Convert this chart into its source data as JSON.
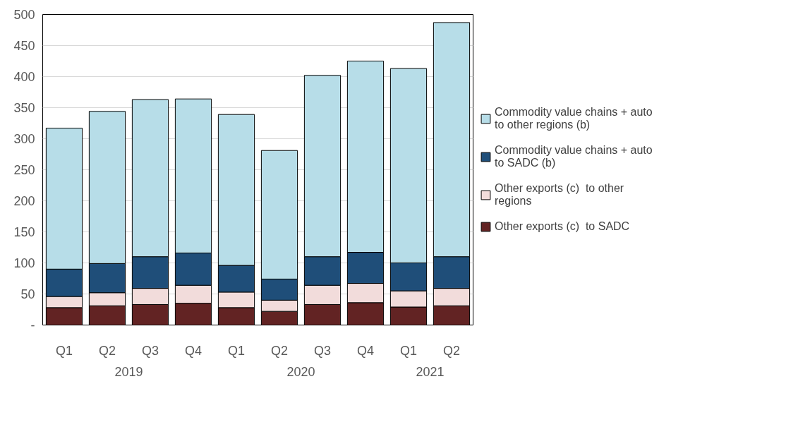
{
  "chart_data": {
    "type": "bar",
    "stacked": true,
    "categories": [
      "Q1",
      "Q2",
      "Q3",
      "Q4",
      "Q1",
      "Q2",
      "Q3",
      "Q4",
      "Q1",
      "Q2"
    ],
    "annotations": [
      "2019",
      "2020",
      "2021"
    ],
    "series": [
      {
        "name": "Other exports (c)  to SADC",
        "color": "#622323",
        "values": [
          28,
          31,
          33,
          35,
          28,
          22,
          33,
          36,
          29,
          31
        ]
      },
      {
        "name": "Other exports (c)  to other regions",
        "color": "#f2dcdb",
        "values": [
          18,
          21,
          26,
          29,
          25,
          18,
          31,
          31,
          26,
          28
        ]
      },
      {
        "name": "Commodity value chains + auto to SADC (b)",
        "color": "#1f4e79",
        "values": [
          44,
          47,
          51,
          52,
          43,
          34,
          46,
          50,
          45,
          51
        ]
      },
      {
        "name": "Commodity value chains + auto to other regions (b)",
        "color": "#b7dde8",
        "values": [
          227,
          245,
          253,
          248,
          243,
          207,
          292,
          308,
          313,
          377
        ]
      }
    ],
    "ylim": [
      0,
      500
    ],
    "yticks": [
      {
        "value": 0,
        "label": "-"
      },
      50,
      100,
      150,
      200,
      250,
      300,
      350,
      400,
      450,
      500
    ],
    "grid": "y",
    "legend": "right"
  }
}
